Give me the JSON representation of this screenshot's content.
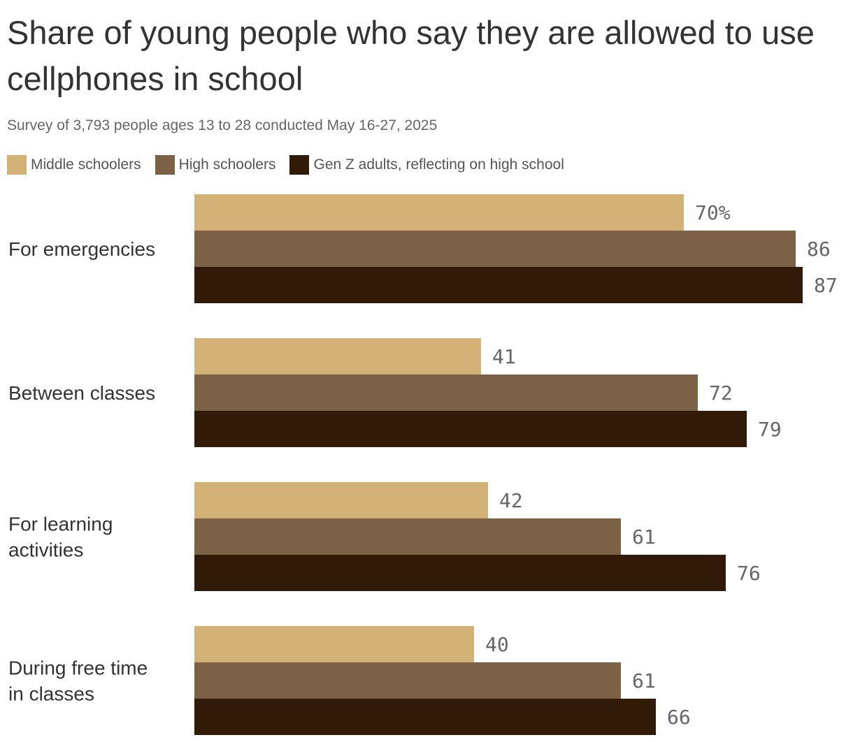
{
  "header": {
    "title": "Share of young people who say they are allowed to use cellphones in school",
    "subtitle": "Survey of 3,793 people ages 13 to 28 conducted May 16-27, 2025"
  },
  "chart_data": {
    "type": "bar",
    "orientation": "horizontal",
    "title": "Share of young people who say they are allowed to use cellphones in school",
    "subtitle": "Survey of 3,793 people ages 13 to 28 conducted May 16-27, 2025",
    "categories": [
      [
        "For emergencies"
      ],
      [
        "Between classes"
      ],
      [
        "For learning",
        "activities"
      ],
      [
        "During free time",
        "in classes"
      ]
    ],
    "series": [
      {
        "name": "Middle schoolers",
        "color": "#d2b277",
        "values": [
          70,
          41,
          42,
          40
        ]
      },
      {
        "name": "High schoolers",
        "color": "#7d6146",
        "values": [
          86,
          72,
          61,
          61
        ]
      },
      {
        "name": "Gen Z adults, reflecting on high school",
        "color": "#321a08",
        "values": [
          87,
          79,
          76,
          66
        ]
      }
    ],
    "value_labels": [
      [
        "70%",
        "86",
        "87"
      ],
      [
        "41",
        "72",
        "79"
      ],
      [
        "42",
        "61",
        "76"
      ],
      [
        "40",
        "61",
        "66"
      ]
    ],
    "xlim": [
      0,
      100
    ],
    "grid": false,
    "legend_position": "top-left"
  }
}
